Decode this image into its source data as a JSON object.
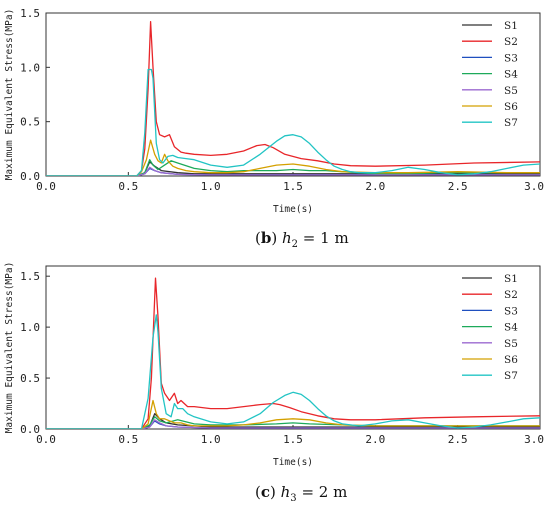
{
  "chart_data": [
    {
      "type": "line",
      "caption": {
        "letter": "b",
        "var": "h",
        "sub": "2",
        "rest": " = 1 m"
      },
      "xlabel": "Time(s)",
      "ylabel": "Maximum Equivalent Stress(MPa)",
      "xlim": [
        0,
        3
      ],
      "ylim": [
        0,
        1.5
      ],
      "xticks": [
        "0.0",
        "0.5",
        "1.0",
        "1.5",
        "2.0",
        "2.5",
        "3.0"
      ],
      "yticks": [
        "0.0",
        "0.5",
        "1.0",
        "1.5"
      ],
      "grid": false,
      "legend": "top-right",
      "series": [
        {
          "name": "S1",
          "color": "#333333",
          "x": [
            0,
            0.55,
            0.6,
            0.63,
            0.66,
            0.7,
            0.8,
            0.9,
            1.0,
            1.5,
            2.0,
            3.0
          ],
          "y": [
            0,
            0,
            0.03,
            0.13,
            0.09,
            0.05,
            0.03,
            0.02,
            0.02,
            0.02,
            0.02,
            0.02
          ]
        },
        {
          "name": "S2",
          "color": "#e8262a",
          "x": [
            0,
            0.55,
            0.58,
            0.6,
            0.62,
            0.635,
            0.65,
            0.67,
            0.69,
            0.72,
            0.75,
            0.78,
            0.82,
            0.85,
            0.9,
            1.0,
            1.1,
            1.2,
            1.28,
            1.33,
            1.38,
            1.45,
            1.55,
            1.65,
            1.75,
            1.85,
            2.0,
            2.3,
            2.6,
            3.0
          ],
          "y": [
            0,
            0,
            0.05,
            0.25,
            0.8,
            1.42,
            1.0,
            0.5,
            0.38,
            0.36,
            0.38,
            0.27,
            0.22,
            0.21,
            0.2,
            0.19,
            0.2,
            0.23,
            0.28,
            0.29,
            0.26,
            0.2,
            0.16,
            0.14,
            0.11,
            0.095,
            0.09,
            0.1,
            0.12,
            0.13
          ]
        },
        {
          "name": "S3",
          "color": "#1f4fbf",
          "x": [
            0,
            0.55,
            0.6,
            0.63,
            0.66,
            0.7,
            0.8,
            1.0,
            1.5,
            2.0,
            3.0
          ],
          "y": [
            0,
            0,
            0.02,
            0.07,
            0.05,
            0.03,
            0.015,
            0.01,
            0.01,
            0.01,
            0.01
          ]
        },
        {
          "name": "S4",
          "color": "#1daa5a",
          "x": [
            0,
            0.55,
            0.6,
            0.63,
            0.65,
            0.68,
            0.72,
            0.76,
            0.8,
            0.9,
            1.0,
            1.1,
            1.2,
            1.3,
            1.4,
            1.5,
            1.6,
            1.7,
            1.8,
            1.9,
            2.0,
            2.2,
            2.4,
            2.6,
            2.8,
            3.0
          ],
          "y": [
            0,
            0,
            0.03,
            0.15,
            0.1,
            0.06,
            0.1,
            0.14,
            0.12,
            0.07,
            0.05,
            0.04,
            0.05,
            0.05,
            0.05,
            0.06,
            0.05,
            0.05,
            0.04,
            0.03,
            0.02,
            0.02,
            0.03,
            0.03,
            0.03,
            0.03
          ]
        },
        {
          "name": "S5",
          "color": "#9b6ad0",
          "x": [
            0,
            0.55,
            0.6,
            0.63,
            0.66,
            0.7,
            0.8,
            1.0,
            1.5,
            2.0,
            3.0
          ],
          "y": [
            0,
            0,
            0.02,
            0.08,
            0.05,
            0.03,
            0.015,
            0.01,
            0.01,
            0.01,
            0.01
          ]
        },
        {
          "name": "S6",
          "color": "#d4a000",
          "x": [
            0,
            0.55,
            0.58,
            0.61,
            0.635,
            0.66,
            0.68,
            0.7,
            0.72,
            0.74,
            0.77,
            0.8,
            0.85,
            0.9,
            1.0,
            1.1,
            1.2,
            1.3,
            1.4,
            1.5,
            1.6,
            1.7,
            1.8,
            2.0,
            2.2,
            2.5,
            2.8,
            3.0
          ],
          "y": [
            0,
            0,
            0.04,
            0.15,
            0.33,
            0.2,
            0.14,
            0.12,
            0.2,
            0.14,
            0.09,
            0.07,
            0.05,
            0.04,
            0.03,
            0.03,
            0.04,
            0.07,
            0.1,
            0.11,
            0.09,
            0.06,
            0.04,
            0.03,
            0.03,
            0.04,
            0.03,
            0.03
          ]
        },
        {
          "name": "S7",
          "color": "#22c4c4",
          "x": [
            0,
            0.55,
            0.58,
            0.6,
            0.62,
            0.64,
            0.65,
            0.67,
            0.69,
            0.71,
            0.74,
            0.77,
            0.8,
            0.85,
            0.9,
            1.0,
            1.1,
            1.2,
            1.3,
            1.35,
            1.4,
            1.45,
            1.5,
            1.55,
            1.6,
            1.65,
            1.7,
            1.75,
            1.8,
            1.85,
            1.9,
            2.0,
            2.1,
            2.2,
            2.3,
            2.4,
            2.5,
            2.6,
            2.7,
            2.8,
            2.9,
            3.0
          ],
          "y": [
            0,
            0,
            0.05,
            0.4,
            0.98,
            0.98,
            0.9,
            0.3,
            0.15,
            0.12,
            0.18,
            0.19,
            0.17,
            0.16,
            0.15,
            0.1,
            0.08,
            0.1,
            0.2,
            0.26,
            0.32,
            0.37,
            0.38,
            0.36,
            0.3,
            0.22,
            0.15,
            0.09,
            0.06,
            0.04,
            0.03,
            0.03,
            0.05,
            0.08,
            0.06,
            0.03,
            0.01,
            0.02,
            0.04,
            0.07,
            0.1,
            0.11
          ]
        }
      ]
    },
    {
      "type": "line",
      "caption": {
        "letter": "c",
        "var": "h",
        "sub": "3",
        "rest": " = 2 m"
      },
      "xlabel": "Time(s)",
      "ylabel": "Maximum Equivalent Stress(MPa)",
      "xlim": [
        0,
        3
      ],
      "ylim": [
        0,
        1.6
      ],
      "xticks": [
        "0.0",
        "0.5",
        "1.0",
        "1.5",
        "2.0",
        "2.5",
        "3.0"
      ],
      "yticks": [
        "0.0",
        "0.5",
        "1.0",
        "1.5"
      ],
      "grid": false,
      "legend": "top-right",
      "series": [
        {
          "name": "S1",
          "color": "#333333",
          "x": [
            0,
            0.58,
            0.63,
            0.66,
            0.69,
            0.73,
            0.8,
            0.9,
            1.0,
            1.5,
            2.0,
            3.0
          ],
          "y": [
            0,
            0,
            0.03,
            0.15,
            0.1,
            0.06,
            0.04,
            0.03,
            0.02,
            0.02,
            0.02,
            0.02
          ]
        },
        {
          "name": "S2",
          "color": "#e8262a",
          "x": [
            0,
            0.58,
            0.62,
            0.64,
            0.665,
            0.68,
            0.7,
            0.72,
            0.75,
            0.78,
            0.8,
            0.82,
            0.86,
            0.9,
            1.0,
            1.1,
            1.2,
            1.3,
            1.38,
            1.42,
            1.48,
            1.55,
            1.65,
            1.75,
            1.85,
            2.0,
            2.3,
            2.6,
            3.0
          ],
          "y": [
            0,
            0,
            0.1,
            0.5,
            1.48,
            1.1,
            0.45,
            0.35,
            0.28,
            0.35,
            0.25,
            0.28,
            0.22,
            0.22,
            0.2,
            0.2,
            0.22,
            0.24,
            0.25,
            0.24,
            0.21,
            0.17,
            0.13,
            0.1,
            0.09,
            0.09,
            0.11,
            0.12,
            0.13
          ]
        },
        {
          "name": "S3",
          "color": "#1f4fbf",
          "x": [
            0,
            0.58,
            0.63,
            0.66,
            0.69,
            0.73,
            0.8,
            1.0,
            1.5,
            2.0,
            3.0
          ],
          "y": [
            0,
            0,
            0.02,
            0.08,
            0.05,
            0.03,
            0.02,
            0.01,
            0.01,
            0.01,
            0.01
          ]
        },
        {
          "name": "S4",
          "color": "#1daa5a",
          "x": [
            0,
            0.58,
            0.63,
            0.66,
            0.69,
            0.73,
            0.8,
            0.9,
            1.0,
            1.2,
            1.4,
            1.5,
            1.6,
            1.8,
            2.0,
            2.3,
            2.6,
            3.0
          ],
          "y": [
            0,
            0,
            0.04,
            0.12,
            0.08,
            0.06,
            0.09,
            0.05,
            0.04,
            0.04,
            0.05,
            0.06,
            0.05,
            0.04,
            0.03,
            0.03,
            0.03,
            0.03
          ]
        },
        {
          "name": "S5",
          "color": "#9b6ad0",
          "x": [
            0,
            0.58,
            0.63,
            0.66,
            0.69,
            0.73,
            0.8,
            1.0,
            1.5,
            2.0,
            3.0
          ],
          "y": [
            0,
            0,
            0.02,
            0.09,
            0.06,
            0.03,
            0.02,
            0.01,
            0.01,
            0.01,
            0.01
          ]
        },
        {
          "name": "S6",
          "color": "#d4a000",
          "x": [
            0,
            0.58,
            0.62,
            0.65,
            0.67,
            0.69,
            0.72,
            0.75,
            0.78,
            0.82,
            0.86,
            0.9,
            1.0,
            1.1,
            1.2,
            1.3,
            1.4,
            1.5,
            1.6,
            1.7,
            1.8,
            2.0,
            2.2,
            2.5,
            2.8,
            3.0
          ],
          "y": [
            0,
            0,
            0.05,
            0.28,
            0.15,
            0.1,
            0.1,
            0.08,
            0.06,
            0.06,
            0.04,
            0.03,
            0.03,
            0.03,
            0.04,
            0.06,
            0.09,
            0.1,
            0.09,
            0.06,
            0.04,
            0.03,
            0.03,
            0.03,
            0.03,
            0.03
          ]
        },
        {
          "name": "S7",
          "color": "#22c4c4",
          "x": [
            0,
            0.58,
            0.62,
            0.65,
            0.67,
            0.68,
            0.7,
            0.73,
            0.76,
            0.78,
            0.8,
            0.83,
            0.86,
            0.9,
            1.0,
            1.1,
            1.2,
            1.3,
            1.38,
            1.45,
            1.5,
            1.55,
            1.6,
            1.65,
            1.7,
            1.75,
            1.8,
            1.85,
            1.9,
            2.0,
            2.1,
            2.2,
            2.3,
            2.4,
            2.5,
            2.6,
            2.7,
            2.8,
            2.9,
            3.0
          ],
          "y": [
            0,
            0,
            0.3,
            0.9,
            1.12,
            0.95,
            0.4,
            0.15,
            0.12,
            0.25,
            0.2,
            0.2,
            0.15,
            0.12,
            0.07,
            0.05,
            0.07,
            0.15,
            0.26,
            0.33,
            0.36,
            0.34,
            0.28,
            0.2,
            0.13,
            0.08,
            0.05,
            0.04,
            0.03,
            0.05,
            0.08,
            0.09,
            0.06,
            0.03,
            0.01,
            0.02,
            0.04,
            0.07,
            0.1,
            0.11
          ]
        }
      ]
    }
  ]
}
